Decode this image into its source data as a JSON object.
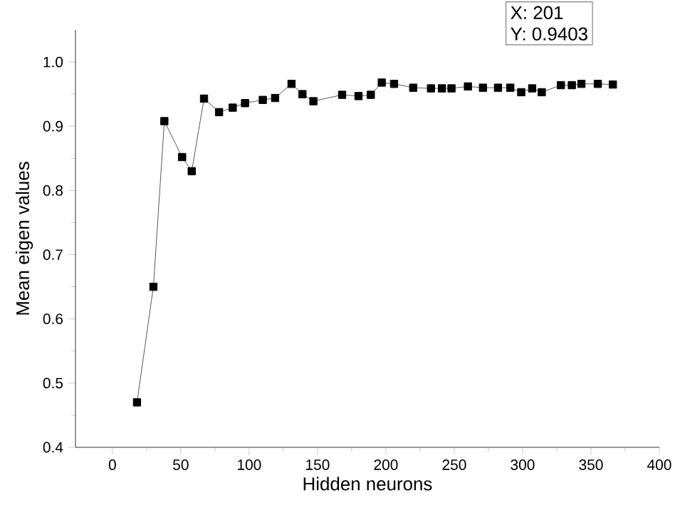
{
  "chart_data": {
    "type": "line",
    "xlabel": "Hidden neurons",
    "ylabel": "Mean eigen values",
    "annotations": [
      "X: 201",
      "Y: 0.9403"
    ],
    "series": [
      {
        "color": "#000000",
        "x": [
          18,
          30,
          38,
          51,
          58,
          67,
          78,
          88,
          97,
          110,
          119,
          131,
          139,
          147,
          168,
          180,
          189,
          197,
          206,
          220,
          233,
          241,
          248,
          260,
          271,
          282,
          291,
          299,
          307,
          314,
          328,
          336,
          343,
          355,
          366
        ],
        "values": [
          0.47,
          0.65,
          0.908,
          0.852,
          0.83,
          0.943,
          0.922,
          0.929,
          0.936,
          0.941,
          0.944,
          0.966,
          0.95,
          0.939,
          0.949,
          0.947,
          0.949,
          0.968,
          0.966,
          0.96,
          0.959,
          0.959,
          0.959,
          0.962,
          0.96,
          0.96,
          0.96,
          0.953,
          0.959,
          0.953,
          0.964,
          0.964,
          0.966,
          0.966,
          0.965
        ]
      }
    ],
    "marker": "square",
    "line_style": "solid",
    "xlim": [
      -27,
      400
    ],
    "xticks": [
      0,
      50,
      100,
      150,
      200,
      250,
      300,
      350,
      400
    ],
    "ylim": [
      0.4,
      1.05
    ],
    "yticks": [
      {
        "value": 0.4,
        "label": "0.4"
      },
      {
        "value": 0.5,
        "label": "0.5"
      },
      {
        "value": 0.6,
        "label": "0.6"
      },
      {
        "value": 0.7,
        "label": "0.7"
      },
      {
        "value": 0.8,
        "label": "0.8"
      },
      {
        "value": 0.9,
        "label": "0.9"
      },
      {
        "value": 1.0,
        "label": "1.0"
      }
    ],
    "grid": false
  }
}
